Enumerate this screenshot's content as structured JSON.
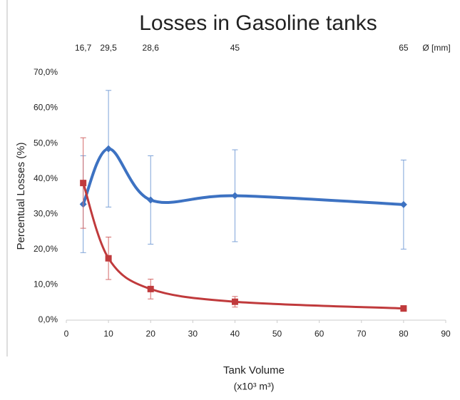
{
  "chart_data": {
    "type": "line",
    "title": "Losses in Gasoline tanks",
    "xlabel": [
      "Tank Volume",
      "(x10³ m³)"
    ],
    "ylabel": "Percentual Losses (%)",
    "top_axis_label": "Ø [mm]",
    "top_ticks": [
      {
        "value": 4,
        "label": "16,7"
      },
      {
        "value": 10,
        "label": "29,5"
      },
      {
        "value": 20,
        "label": "28,6"
      },
      {
        "value": 40,
        "label": "45"
      },
      {
        "value": 80,
        "label": "65"
      }
    ],
    "x": [
      4,
      10,
      20,
      40,
      80
    ],
    "xlim": [
      0,
      90
    ],
    "xticks": [
      0,
      10,
      20,
      30,
      40,
      50,
      60,
      70,
      80,
      90
    ],
    "ylim": [
      0,
      70
    ],
    "yticks": [
      {
        "value": 0,
        "label": "0,0%"
      },
      {
        "value": 10,
        "label": "10,0%"
      },
      {
        "value": 20,
        "label": "20,0%"
      },
      {
        "value": 30,
        "label": "30,0%"
      },
      {
        "value": 40,
        "label": "40,0%"
      },
      {
        "value": 50,
        "label": "50,0%"
      },
      {
        "value": 60,
        "label": "60,0%"
      },
      {
        "value": 70,
        "label": "70,0%"
      }
    ],
    "series": [
      {
        "color": "#3d72c2",
        "error_color": "#7ea3d8",
        "marker": "diamond",
        "values": [
          32.8,
          48.5,
          34.0,
          35.2,
          32.7
        ],
        "errors": [
          13.7,
          16.5,
          12.5,
          13.0,
          12.6
        ]
      },
      {
        "color": "#c03a3c",
        "error_color": "#d46a6a",
        "marker": "square",
        "values": [
          38.8,
          17.5,
          8.8,
          5.2,
          3.3
        ],
        "errors": [
          12.8,
          6.0,
          2.8,
          1.5,
          0.8
        ]
      }
    ]
  }
}
